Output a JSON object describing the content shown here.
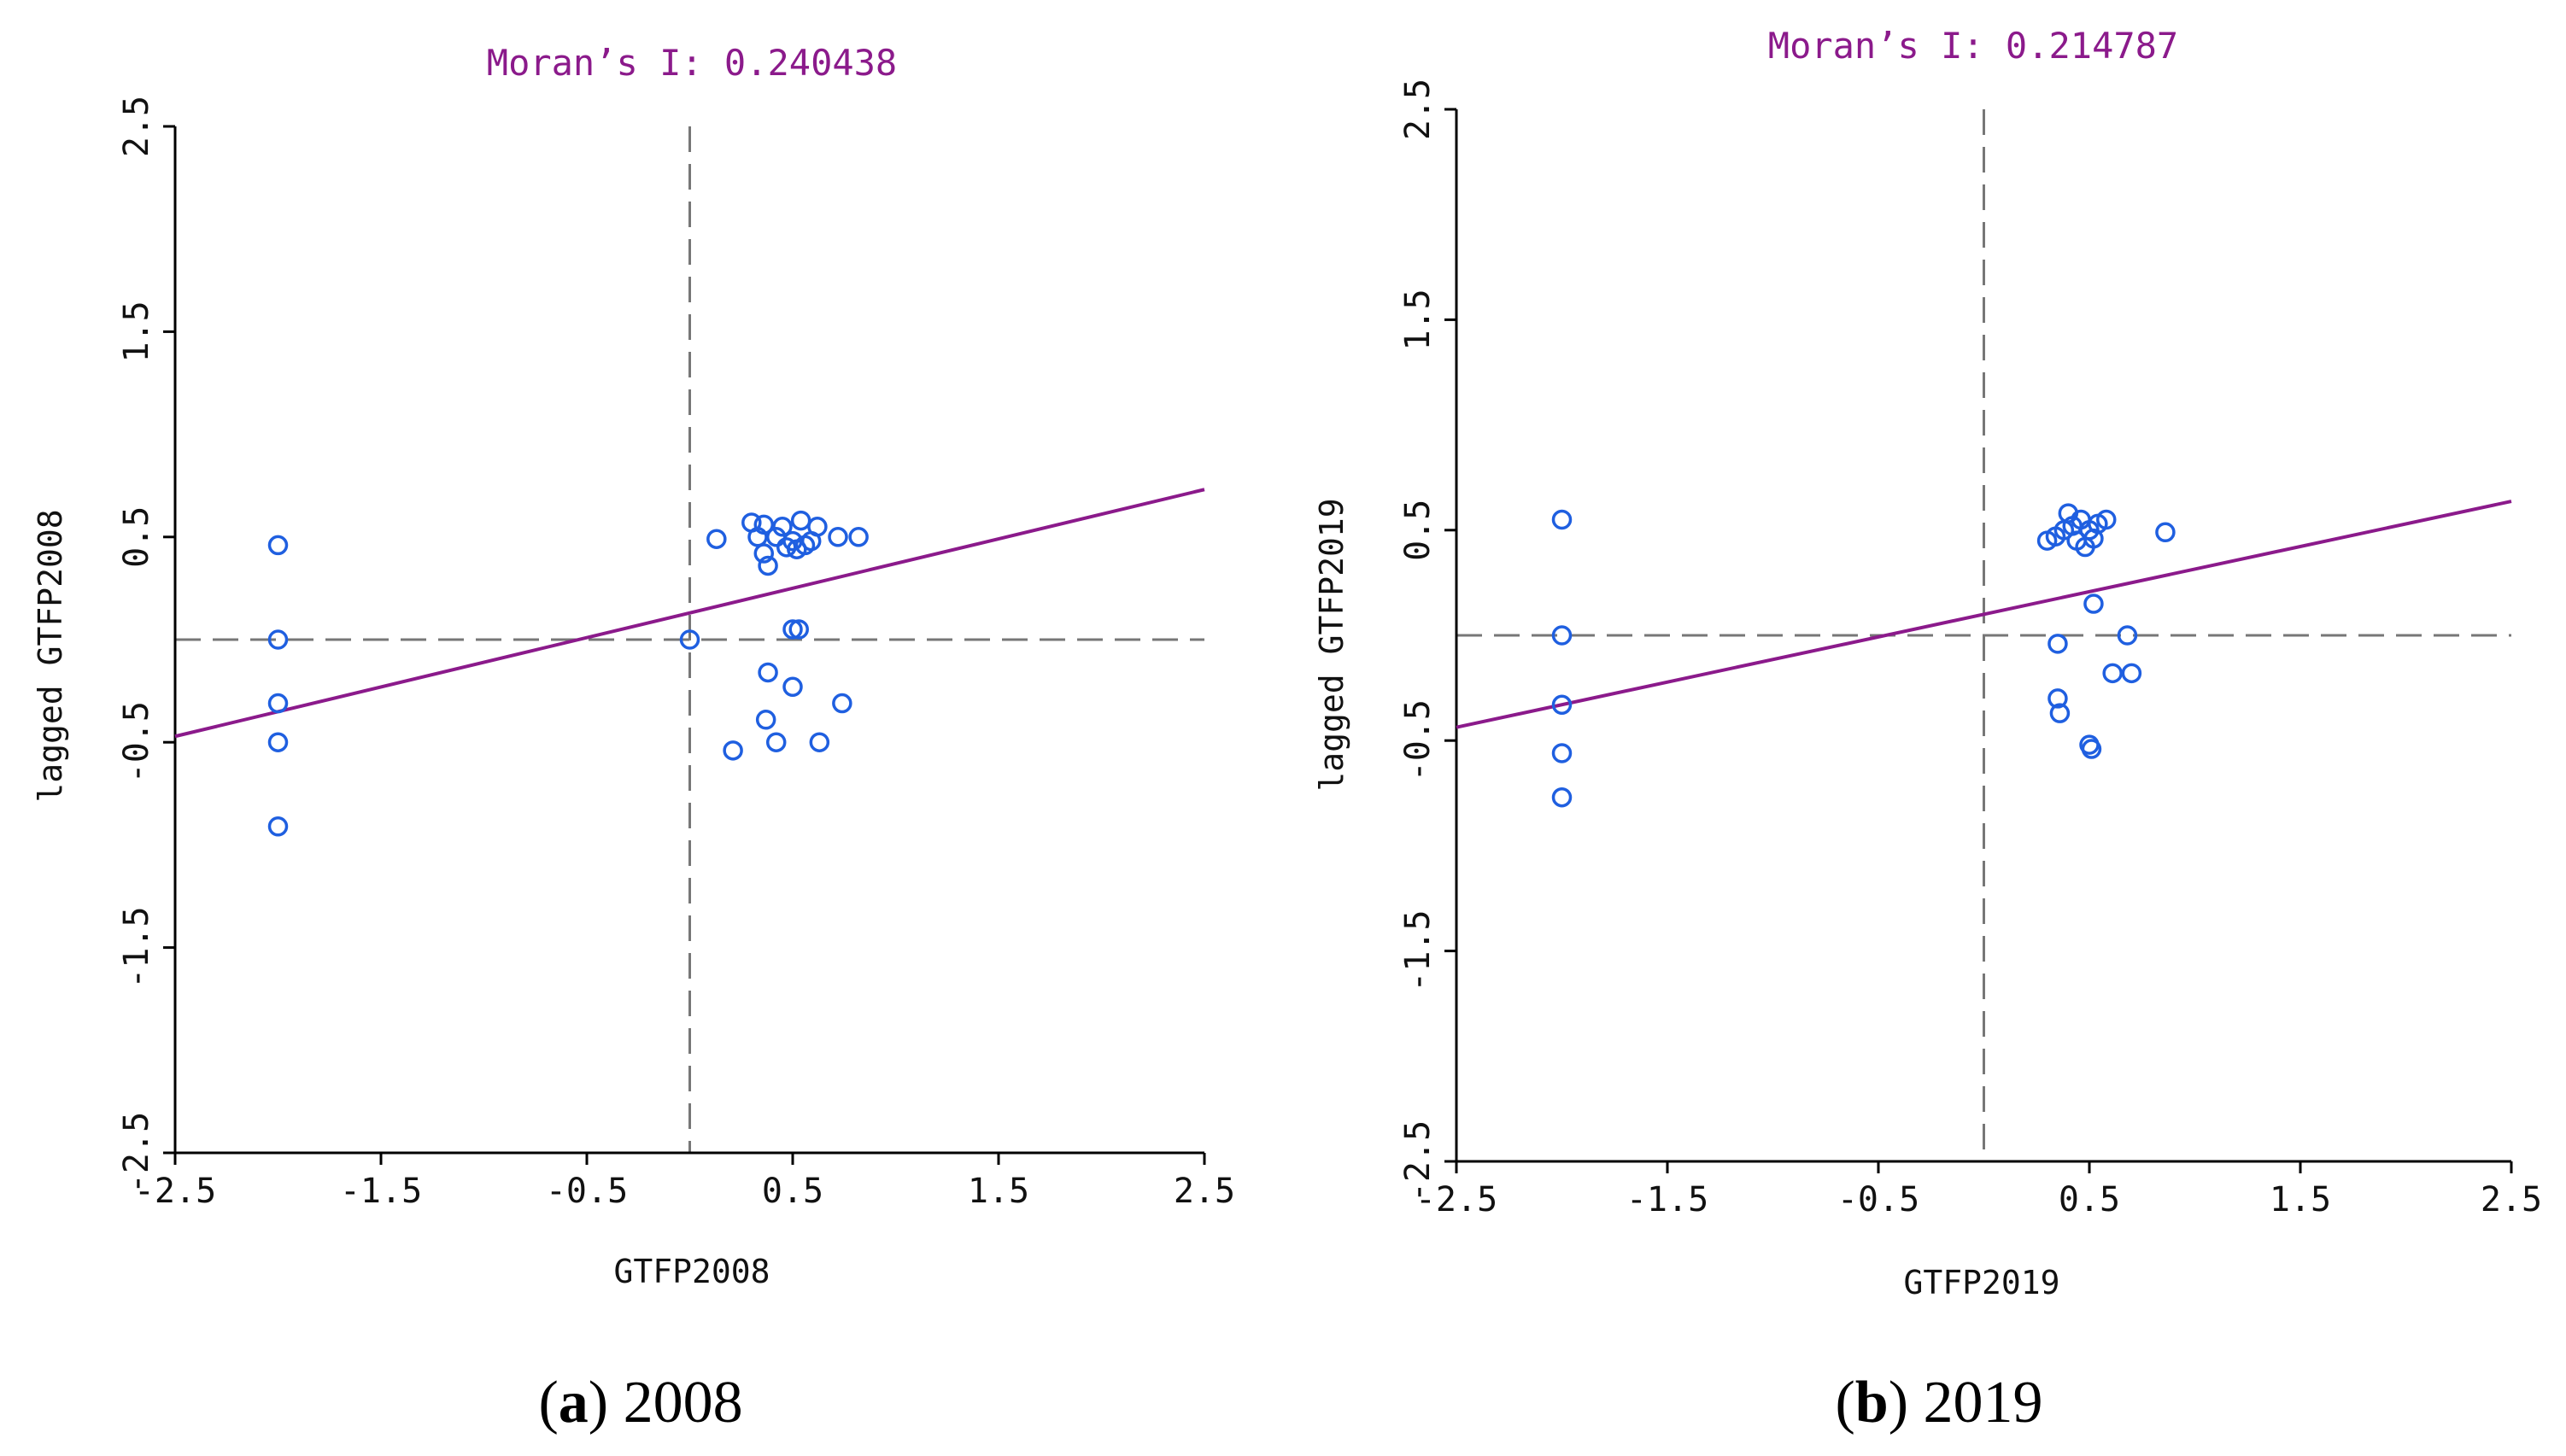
{
  "colors": {
    "point": "#1f5fe0",
    "fit_line": "#8b1a8b",
    "title": "#8b1a8b",
    "axis": "#000000",
    "guide": "#777777"
  },
  "chart_data": [
    {
      "type": "scatter",
      "title": "Moran’s I: 0.240438",
      "xlabel": "GTFP2008",
      "ylabel": "lagged GTFP2008",
      "xlim": [
        -2.5,
        2.5
      ],
      "ylim": [
        -2.5,
        2.5
      ],
      "xticks": [
        -2.5,
        -1.5,
        -0.5,
        0.5,
        1.5,
        2.5
      ],
      "yticks": [
        -2.5,
        -1.5,
        -0.5,
        0.5,
        1.5,
        2.5
      ],
      "xtick_labels": [
        "-2.5",
        "-1.5",
        "-0.5",
        "0.5",
        "1.5",
        "2.5"
      ],
      "ytick_labels": [
        "-2.5",
        "-1.5",
        "-0.5",
        "0.5",
        "1.5",
        "2.5"
      ],
      "reference_lines": {
        "x": 0,
        "y": 0
      },
      "fit_line": {
        "slope": 0.240438,
        "intercept": 0.13
      },
      "points": [
        [
          -2.0,
          0.46
        ],
        [
          -2.0,
          0.0
        ],
        [
          -2.0,
          -0.31
        ],
        [
          -2.0,
          -0.5
        ],
        [
          -2.0,
          -0.91
        ],
        [
          0.0,
          0.0
        ],
        [
          0.13,
          0.49
        ],
        [
          0.3,
          0.57
        ],
        [
          0.33,
          0.5
        ],
        [
          0.36,
          0.56
        ],
        [
          0.36,
          0.42
        ],
        [
          0.38,
          0.36
        ],
        [
          0.42,
          0.5
        ],
        [
          0.45,
          0.55
        ],
        [
          0.47,
          0.45
        ],
        [
          0.5,
          0.48
        ],
        [
          0.52,
          0.44
        ],
        [
          0.54,
          0.58
        ],
        [
          0.56,
          0.46
        ],
        [
          0.59,
          0.48
        ],
        [
          0.62,
          0.55
        ],
        [
          0.72,
          0.5
        ],
        [
          0.82,
          0.5
        ],
        [
          0.5,
          0.05
        ],
        [
          0.53,
          0.05
        ],
        [
          0.38,
          -0.16
        ],
        [
          0.5,
          -0.23
        ],
        [
          0.74,
          -0.31
        ],
        [
          0.37,
          -0.39
        ],
        [
          0.42,
          -0.5
        ],
        [
          0.63,
          -0.5
        ],
        [
          0.21,
          -0.54
        ]
      ]
    },
    {
      "type": "scatter",
      "title": "Moran’s I: 0.214787",
      "xlabel": "GTFP2019",
      "ylabel": "lagged GTFP2019",
      "xlim": [
        -2.5,
        2.5
      ],
      "ylim": [
        -2.5,
        2.5
      ],
      "xticks": [
        -2.5,
        -1.5,
        -0.5,
        0.5,
        1.5,
        2.5
      ],
      "yticks": [
        -2.5,
        -1.5,
        -0.5,
        0.5,
        1.5,
        2.5
      ],
      "xtick_labels": [
        "-2.5",
        "-1.5",
        "-0.5",
        "0.5",
        "1.5",
        "2.5"
      ],
      "ytick_labels": [
        "-2.5",
        "-1.5",
        "-0.5",
        "0.5",
        "1.5",
        "2.5"
      ],
      "reference_lines": {
        "x": 0,
        "y": 0
      },
      "fit_line": {
        "slope": 0.214787,
        "intercept": 0.1
      },
      "points": [
        [
          -2.0,
          0.55
        ],
        [
          -2.0,
          0.0
        ],
        [
          -2.0,
          -0.33
        ],
        [
          -2.0,
          -0.56
        ],
        [
          -2.0,
          -0.77
        ],
        [
          0.3,
          0.45
        ],
        [
          0.34,
          0.47
        ],
        [
          0.38,
          0.5
        ],
        [
          0.4,
          0.58
        ],
        [
          0.42,
          0.52
        ],
        [
          0.44,
          0.45
        ],
        [
          0.46,
          0.55
        ],
        [
          0.48,
          0.42
        ],
        [
          0.5,
          0.5
        ],
        [
          0.52,
          0.46
        ],
        [
          0.54,
          0.53
        ],
        [
          0.58,
          0.55
        ],
        [
          0.86,
          0.49
        ],
        [
          0.52,
          0.15
        ],
        [
          0.35,
          -0.04
        ],
        [
          0.68,
          0.0
        ],
        [
          0.61,
          -0.18
        ],
        [
          0.7,
          -0.18
        ],
        [
          0.35,
          -0.3
        ],
        [
          0.36,
          -0.37
        ],
        [
          0.5,
          -0.52
        ],
        [
          0.51,
          -0.54
        ]
      ]
    }
  ],
  "captions": [
    {
      "letter": "a",
      "text": " 2008"
    },
    {
      "letter": "b",
      "text": " 2019"
    }
  ]
}
